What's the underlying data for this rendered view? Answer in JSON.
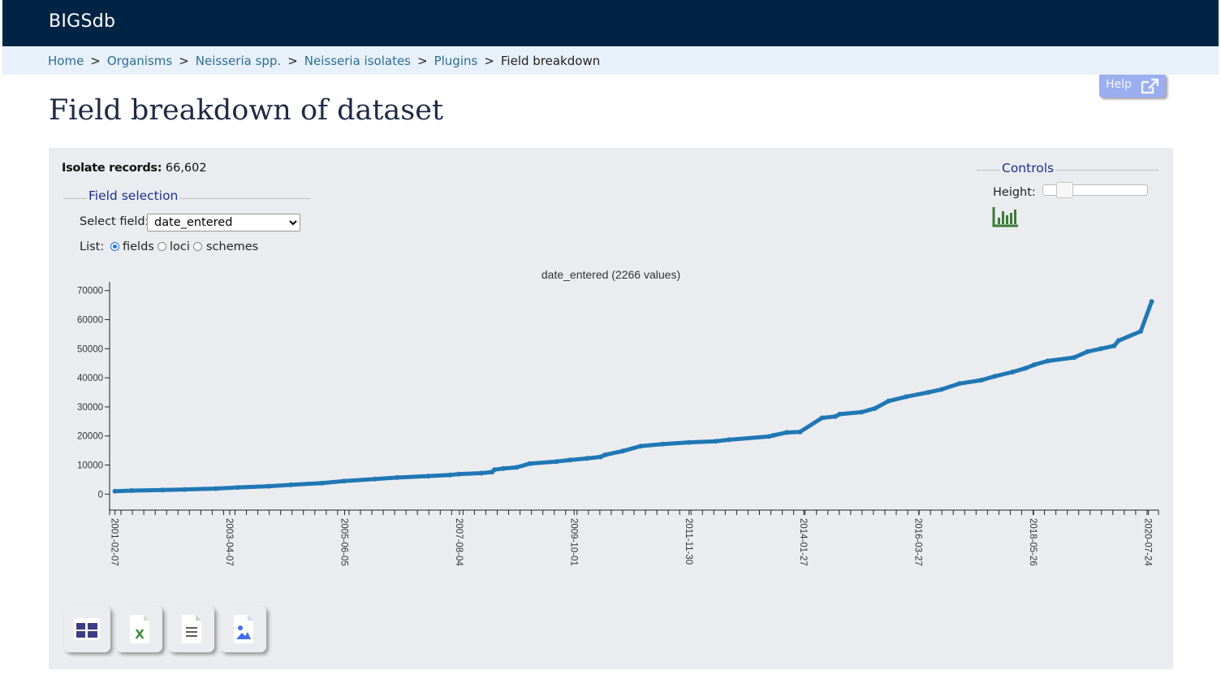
{
  "header": {
    "brand": "BIGSdb"
  },
  "breadcrumb": {
    "items": [
      {
        "label": "Home",
        "link": true
      },
      {
        "label": "Organisms",
        "link": true
      },
      {
        "label": "Neisseria spp.",
        "link": true
      },
      {
        "label": "Neisseria isolates",
        "link": true
      },
      {
        "label": "Plugins",
        "link": true
      },
      {
        "label": "Field breakdown",
        "link": false
      }
    ],
    "separator": ">"
  },
  "help": {
    "label": "Help",
    "icon": "external-link-icon"
  },
  "page": {
    "title": "Field breakdown of dataset"
  },
  "summary": {
    "label": "Isolate records:",
    "value": "66,602"
  },
  "field_selection": {
    "legend": "Field selection",
    "select_label": "Select field:",
    "selected": "date_entered",
    "list_label": "List:",
    "list_options": [
      {
        "label": "fields",
        "checked": true
      },
      {
        "label": "loci",
        "checked": false
      },
      {
        "label": "schemes",
        "checked": false
      }
    ]
  },
  "controls": {
    "legend": "Controls",
    "height_label": "Height:",
    "height_level": 0.2,
    "chart_icon": "bar-chart-icon"
  },
  "chart_data": {
    "type": "line",
    "title": "date_entered (2266 values)",
    "y_ticks": [
      0,
      10000,
      20000,
      30000,
      40000,
      50000,
      60000,
      70000
    ],
    "ylim": [
      -5500,
      73000
    ],
    "x_range": [
      "2001-01-01",
      "2020-10-01"
    ],
    "x_tick_labels": [
      "2001-02-07",
      "2003-04-07",
      "2005-06-05",
      "2007-08-04",
      "2009-10-01",
      "2011-11-30",
      "2014-01-27",
      "2016-03-27",
      "2018-05-26",
      "2020-07-24"
    ],
    "color": "#1f77b4",
    "grid": false,
    "series": [
      {
        "x": [
          "2001-02-07",
          "2001-06-01",
          "2002-01-01",
          "2002-06-01",
          "2003-01-01",
          "2003-06-01",
          "2004-01-01",
          "2004-06-01",
          "2005-01-01",
          "2005-06-01",
          "2006-01-01",
          "2006-06-01",
          "2007-01-01",
          "2007-06-01",
          "2007-08-01",
          "2008-01-01",
          "2008-03-15",
          "2008-04-01",
          "2008-06-01",
          "2008-09-01",
          "2008-12-01",
          "2009-06-01",
          "2009-09-01",
          "2010-01-01",
          "2010-04-01",
          "2010-05-01",
          "2010-09-01",
          "2011-01-01",
          "2011-06-01",
          "2011-12-01",
          "2012-06-01",
          "2012-09-01",
          "2013-06-01",
          "2013-07-01",
          "2013-10-01",
          "2014-01-01",
          "2014-06-01",
          "2014-09-01",
          "2014-10-01",
          "2015-03-01",
          "2015-06-01",
          "2015-09-01",
          "2016-01-01",
          "2016-06-01",
          "2016-09-01",
          "2017-01-01",
          "2017-06-01",
          "2017-09-01",
          "2018-01-01",
          "2018-04-01",
          "2018-06-01",
          "2018-09-01",
          "2019-03-01",
          "2019-06-01",
          "2019-09-01",
          "2019-12-01",
          "2020-01-01",
          "2020-06-01",
          "2020-08-15"
        ],
        "y": [
          1000,
          1200,
          1400,
          1600,
          1900,
          2300,
          2700,
          3200,
          3800,
          4500,
          5200,
          5700,
          6200,
          6600,
          6900,
          7200,
          7600,
          8400,
          8800,
          9200,
          10500,
          11200,
          11700,
          12300,
          12800,
          13500,
          14800,
          16500,
          17200,
          17800,
          18200,
          18700,
          19800,
          20200,
          21200,
          21400,
          26200,
          26700,
          27500,
          28200,
          29500,
          32000,
          33500,
          35000,
          36000,
          38000,
          39200,
          40500,
          42000,
          43300,
          44500,
          45800,
          47000,
          49000,
          50000,
          51000,
          52800,
          56000,
          66200
        ]
      }
    ]
  },
  "export_buttons": [
    {
      "label": "Table",
      "icon": "table-icon",
      "color": "#3d3d85"
    },
    {
      "label": "Excel",
      "icon": "excel-file-icon",
      "color": "#3c8a3e"
    },
    {
      "label": "Text",
      "icon": "text-file-icon",
      "color": "#5e5e5e"
    },
    {
      "label": "Image",
      "icon": "image-file-icon",
      "color": "#3e6ff0"
    }
  ]
}
